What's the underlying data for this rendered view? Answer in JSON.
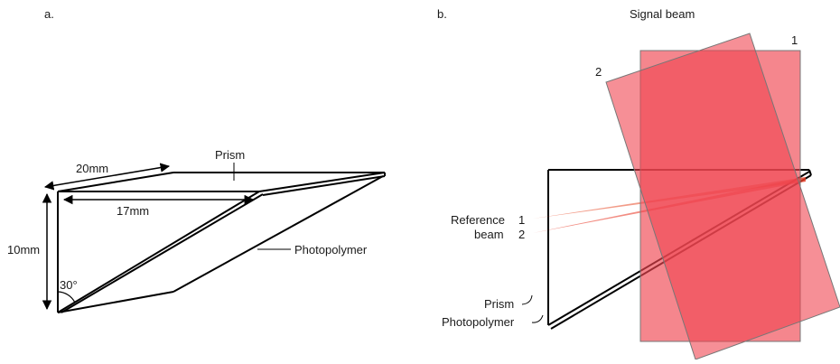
{
  "panel_a": {
    "label": "a.",
    "dimensions": {
      "top_edge": "20mm",
      "inner_edge": "17mm",
      "height": "10mm",
      "angle": "30°"
    },
    "labels": {
      "prism": "Prism",
      "photopolymer": "Photopolymer"
    }
  },
  "panel_b": {
    "label": "b.",
    "signal_beam": "Signal beam",
    "beam_numbers": {
      "one": "1",
      "two": "2"
    },
    "reference": {
      "line1": "Reference",
      "line2": "beam",
      "num1": "1",
      "num2": "2"
    },
    "labels": {
      "prism": "Prism",
      "photopolymer": "Photopolymer"
    }
  },
  "colors": {
    "signal_beam_fill": "#f04550",
    "reference_beam_fill": "#ea5a3a",
    "outline": "#000000"
  }
}
